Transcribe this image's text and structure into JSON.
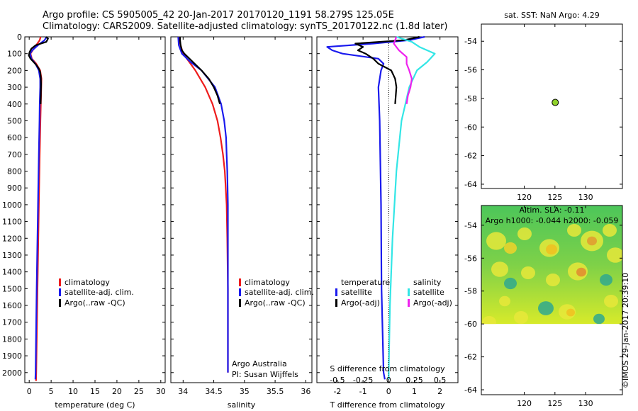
{
  "header": {
    "line1": "Argo profile: CS 5905005_42 20-Jan-2017 20170120_1191 58.279S 125.05E",
    "line2": "Climatology: CARS2009. Satellite-adjusted climatology: synTS_20170122.nc (1.8d later)"
  },
  "credit": "©IMOS 29-Jan-2017 20:39:10",
  "colors": {
    "climatology": "#ee1c1c",
    "satellite": "#1a1aee",
    "argo": "#000000",
    "sal_sat": "#33e6e6",
    "sal_argo": "#ee22ee"
  },
  "chart_data": [
    {
      "id": "temp",
      "type": "line",
      "xlabel": "temperature (deg C)",
      "ylabel": "",
      "xlim": [
        -1,
        31
      ],
      "ylim": [
        2060,
        0
      ],
      "xticks": [
        "0",
        "5",
        "10",
        "15",
        "20",
        "25",
        "30"
      ],
      "yticks": [
        "0",
        "100",
        "200",
        "300",
        "400",
        "500",
        "600",
        "700",
        "800",
        "900",
        "1000",
        "1100",
        "1200",
        "1300",
        "1400",
        "1500",
        "1600",
        "1700",
        "1800",
        "1900",
        "2000"
      ],
      "legend": [
        "climatology",
        "satellite-adj. clim.",
        "Argo(..raw -QC)"
      ],
      "series": [
        {
          "name": "climatology",
          "color": "#ee1c1c",
          "depth": [
            0,
            20,
            50,
            80,
            100,
            130,
            160,
            200,
            250,
            300,
            400,
            500,
            700,
            1000,
            1500,
            2000,
            2050
          ],
          "values": [
            2.6,
            2.4,
            1.6,
            0.8,
            0.3,
            0.6,
            1.6,
            2.5,
            2.8,
            2.75,
            2.65,
            2.55,
            2.4,
            2.2,
            1.9,
            1.6,
            1.55
          ]
        },
        {
          "name": "satellite-adj. clim.",
          "color": "#1a1aee",
          "depth": [
            0,
            20,
            50,
            80,
            100,
            130,
            160,
            200,
            250,
            300,
            400,
            500,
            700,
            1000,
            1500,
            2000,
            2040
          ],
          "values": [
            4.0,
            3.5,
            2.0,
            0.7,
            0.2,
            0.5,
            1.4,
            2.2,
            2.5,
            2.5,
            2.4,
            2.35,
            2.2,
            2.0,
            1.7,
            1.45,
            1.4
          ]
        },
        {
          "name": "Argo(..raw -QC)",
          "color": "#000000",
          "depth": [
            0,
            10,
            30,
            50,
            70,
            90,
            110,
            130,
            150,
            170,
            190,
            210,
            240,
            280,
            350,
            400
          ],
          "values": [
            3.8,
            4.3,
            3.9,
            1.5,
            0.5,
            0.1,
            -0.1,
            0.3,
            1.0,
            1.7,
            2.2,
            2.5,
            2.65,
            2.7,
            2.65,
            2.6
          ]
        }
      ]
    },
    {
      "id": "sal",
      "type": "line",
      "xlabel": "salinity",
      "ylabel": "",
      "xlim": [
        33.8,
        36.1
      ],
      "ylim": [
        2060,
        0
      ],
      "xticks": [
        "34",
        "34.5",
        "35",
        "35.5",
        "36"
      ],
      "legend": [
        "climatology",
        "satellite-adj. clim.",
        "Argo(..raw -QC)"
      ],
      "series": [
        {
          "name": "climatology",
          "color": "#ee1c1c",
          "depth": [
            0,
            50,
            100,
            150,
            200,
            300,
            400,
            500,
            600,
            700,
            800,
            1000,
            1200,
            1500,
            1800,
            2000
          ],
          "values": [
            33.92,
            33.96,
            34.0,
            34.1,
            34.2,
            34.36,
            34.48,
            34.56,
            34.61,
            34.65,
            34.68,
            34.71,
            34.72,
            34.73,
            34.73,
            34.73
          ]
        },
        {
          "name": "satellite-adj. clim.",
          "color": "#1a1aee",
          "depth": [
            0,
            50,
            100,
            150,
            200,
            300,
            400,
            500,
            600,
            700,
            800,
            1000,
            1200,
            1500,
            1800,
            2000
          ],
          "values": [
            33.92,
            33.93,
            33.98,
            34.12,
            34.3,
            34.52,
            34.62,
            34.67,
            34.7,
            34.71,
            34.72,
            34.73,
            34.73,
            34.73,
            34.73,
            34.73
          ]
        },
        {
          "name": "Argo(..raw -QC)",
          "color": "#000000",
          "depth": [
            0,
            20,
            50,
            80,
            100,
            150,
            200,
            250,
            300,
            350,
            400
          ],
          "values": [
            33.95,
            33.95,
            33.96,
            33.98,
            34.02,
            34.16,
            34.3,
            34.42,
            34.5,
            34.56,
            34.6
          ]
        }
      ]
    },
    {
      "id": "diff",
      "type": "line",
      "xlabel": "T difference from climatology",
      "title": "S difference from climatology",
      "xlim": [
        -2.8,
        2.7
      ],
      "ylim": [
        2060,
        0
      ],
      "xticks": [
        "-2",
        "-1",
        "0",
        "1",
        "2"
      ],
      "sticks": [
        "-0.5",
        "-0.25",
        "0",
        "0.25",
        "0.5"
      ],
      "legend_headers": [
        "temperature",
        "salinity"
      ],
      "legend": [
        "satellite",
        "Argo(-adj)",
        "satellite",
        "Argo(-adj)"
      ],
      "note": [
        "Argo Australia",
        "PI: Susan Wijffels"
      ],
      "series": [
        {
          "name": "satellite",
          "color": "#1a1aee",
          "depth": [
            0,
            20,
            40,
            60,
            80,
            100,
            130,
            160,
            200,
            300,
            500,
            1000,
            1500,
            2000,
            2040
          ],
          "values": [
            1.4,
            0.8,
            -0.6,
            -2.4,
            -2.2,
            -1.8,
            -0.4,
            -0.2,
            -0.3,
            -0.4,
            -0.35,
            -0.3,
            -0.28,
            -0.2,
            -0.15
          ]
        },
        {
          "name": "Argo(-adj)",
          "color": "#000000",
          "depth": [
            0,
            20,
            40,
            60,
            80,
            100,
            130,
            160,
            200,
            250,
            300,
            400
          ],
          "values": [
            1.2,
            0.6,
            -1.3,
            -1.0,
            -1.2,
            -0.9,
            -0.6,
            -0.4,
            0.1,
            0.25,
            0.3,
            0.25
          ]
        },
        {
          "name": "satellite",
          "color": "#33e6e6",
          "depth": [
            0,
            30,
            60,
            100,
            150,
            200,
            300,
            500,
            800,
            1200,
            1600,
            2000,
            2040
          ],
          "values": [
            0.3,
            0.9,
            1.2,
            1.8,
            1.5,
            1.1,
            0.8,
            0.5,
            0.3,
            0.15,
            0.05,
            0.0,
            0.0
          ]
        },
        {
          "name": "Argo(-adj)",
          "color": "#ee22ee",
          "depth": [
            0,
            40,
            80,
            120,
            160,
            200,
            250,
            300,
            350,
            400
          ],
          "values": [
            0.3,
            0.2,
            0.4,
            0.7,
            0.7,
            0.8,
            0.9,
            0.85,
            0.75,
            0.7
          ]
        }
      ]
    },
    {
      "id": "map",
      "type": "scatter",
      "title": "sat. SST: NaN Argo: 4.29",
      "xlim": [
        113,
        136
      ],
      "ylim": [
        -64.3,
        -52.8
      ],
      "xticks": [
        "120",
        "125",
        "130"
      ],
      "yticks": [
        "-54",
        "-56",
        "-58",
        "-60",
        "-62",
        "-64"
      ],
      "points": [
        {
          "x": 125.05,
          "y": -58.28
        }
      ]
    },
    {
      "id": "sla",
      "type": "heatmap",
      "title": "Altim. SLA: -0.11",
      "subtitle": "Argo h1000: -0.044 h2000: -0.059",
      "xlim": [
        113,
        136
      ],
      "ylim": [
        -64.3,
        -52.8
      ],
      "xticks": [
        "120",
        "125",
        "130"
      ],
      "yticks": [
        "-54",
        "-56",
        "-58",
        "-60",
        "-62",
        "-64"
      ]
    }
  ]
}
